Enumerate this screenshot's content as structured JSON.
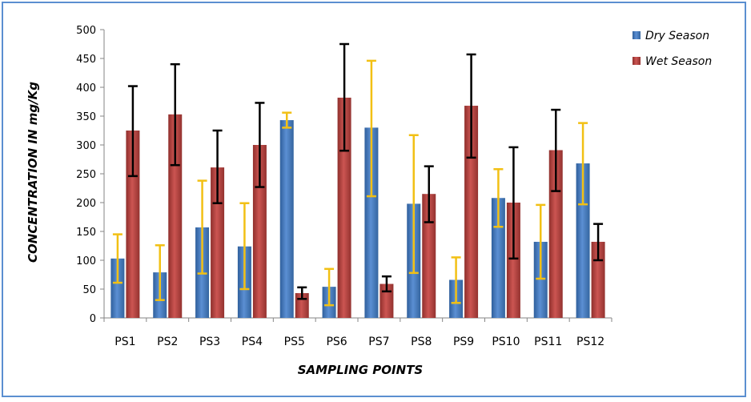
{
  "chart_data": {
    "type": "bar",
    "title": "",
    "xlabel": "SAMPLING POINTS",
    "ylabel": "CONCENTRATION IN mg/Kg",
    "ylim": [
      0,
      500
    ],
    "yticks": [
      0,
      50,
      100,
      150,
      200,
      250,
      300,
      350,
      400,
      450,
      500
    ],
    "grid": false,
    "legend_position": "top-right",
    "categories": [
      "PS1",
      "PS2",
      "PS3",
      "PS4",
      "PS5",
      "PS6",
      "PS7",
      "PS8",
      "PS9",
      "PS10",
      "PS11",
      "PS12"
    ],
    "series": [
      {
        "name": "Dry Season",
        "color": "#4a7ebb",
        "error_color": "#f2c014",
        "values": [
          103,
          79,
          157,
          124,
          343,
          54,
          330,
          198,
          66,
          208,
          132,
          268
        ],
        "error_low": [
          61,
          31,
          77,
          50,
          330,
          22,
          211,
          78,
          26,
          158,
          68,
          197
        ],
        "error_high": [
          145,
          126,
          238,
          199,
          356,
          85,
          446,
          317,
          105,
          258,
          196,
          338
        ]
      },
      {
        "name": "Wet Season",
        "color": "#be4b48",
        "error_color": "#000000",
        "values": [
          325,
          353,
          261,
          300,
          43,
          382,
          59,
          215,
          368,
          200,
          291,
          132
        ],
        "error_low": [
          246,
          265,
          199,
          227,
          33,
          290,
          46,
          166,
          278,
          103,
          220,
          100
        ],
        "error_high": [
          402,
          440,
          325,
          373,
          53,
          475,
          72,
          263,
          457,
          296,
          361,
          163
        ]
      }
    ]
  }
}
